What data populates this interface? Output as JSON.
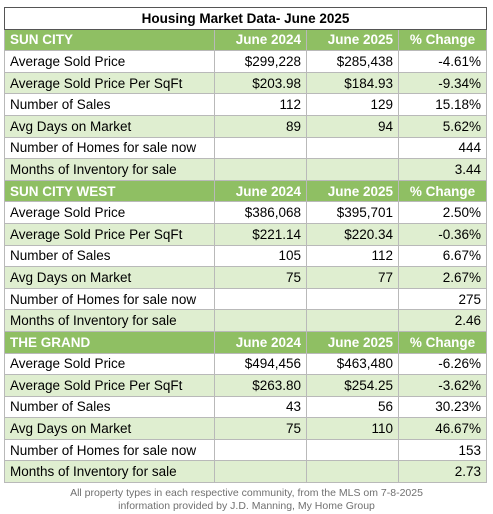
{
  "title": "Housing Market Data- June 2025",
  "columns": {
    "col1": "June 2024",
    "col2": "June 2025",
    "col3": "% Change"
  },
  "sections": [
    {
      "name": "SUN CITY",
      "rows": [
        {
          "label": "Average Sold Price",
          "v2024": "$299,228",
          "v2025": "$285,438",
          "change": "-4.61%"
        },
        {
          "label": "Average Sold Price Per SqFt",
          "v2024": "$203.98",
          "v2025": "$184.93",
          "change": "-9.34%"
        },
        {
          "label": "Number of Sales",
          "v2024": "112",
          "v2025": "129",
          "change": "15.18%"
        },
        {
          "label": "Avg Days on Market",
          "v2024": "89",
          "v2025": "94",
          "change": "5.62%"
        },
        {
          "label": "Number of Homes for sale now",
          "v2024": "",
          "v2025": "",
          "change": "444"
        },
        {
          "label": "Months of Inventory for sale",
          "v2024": "",
          "v2025": "",
          "change": "3.44"
        }
      ]
    },
    {
      "name": "SUN CITY WEST",
      "rows": [
        {
          "label": "Average Sold Price",
          "v2024": "$386,068",
          "v2025": "$395,701",
          "change": "2.50%"
        },
        {
          "label": "Average Sold Price Per SqFt",
          "v2024": "$221.14",
          "v2025": "$220.34",
          "change": "-0.36%"
        },
        {
          "label": "Number of Sales",
          "v2024": "105",
          "v2025": "112",
          "change": "6.67%"
        },
        {
          "label": "Avg Days on Market",
          "v2024": "75",
          "v2025": "77",
          "change": "2.67%"
        },
        {
          "label": "Number of Homes for sale now",
          "v2024": "",
          "v2025": "",
          "change": "275"
        },
        {
          "label": "Months of Inventory for sale",
          "v2024": "",
          "v2025": "",
          "change": "2.46"
        }
      ]
    },
    {
      "name": "THE GRAND",
      "rows": [
        {
          "label": "Average Sold Price",
          "v2024": "$494,456",
          "v2025": "$463,480",
          "change": "-6.26%"
        },
        {
          "label": "Average Sold Price Per SqFt",
          "v2024": "$263.80",
          "v2025": "$254.25",
          "change": "-3.62%"
        },
        {
          "label": "Number of Sales",
          "v2024": "43",
          "v2025": "56",
          "change": "30.23%"
        },
        {
          "label": "Avg Days on Market",
          "v2024": "75",
          "v2025": "110",
          "change": "46.67%"
        },
        {
          "label": "Number of Homes for sale now",
          "v2024": "",
          "v2025": "",
          "change": "153"
        },
        {
          "label": "Months of Inventory for sale",
          "v2024": "",
          "v2025": "",
          "change": "2.73"
        }
      ]
    }
  ],
  "footer": {
    "line1": "All property types in each respective community, from the MLS om 7-8-2025",
    "line2": "information provided by J.D. Manning, My Home Group"
  },
  "colors": {
    "header_green": "#8fbf63",
    "row_alt": "#dfeed0",
    "footer_text": "#707070"
  }
}
